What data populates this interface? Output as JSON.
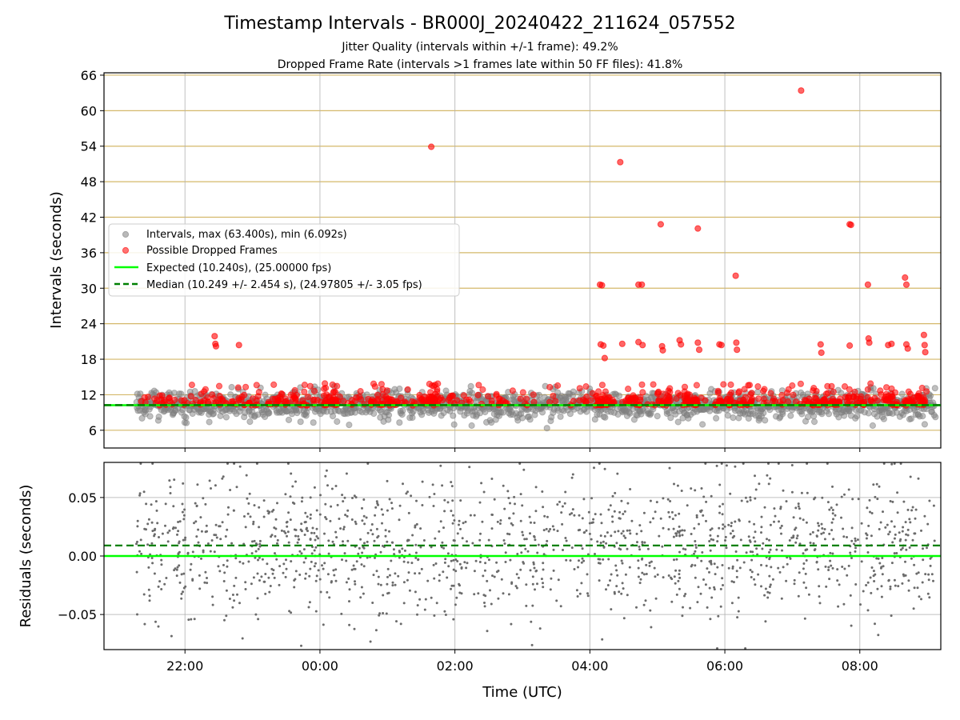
{
  "chart_data": [
    {
      "panel": "intervals",
      "type": "scatter",
      "title": "Timestamp Intervals - BR000J_20240422_211624_057552",
      "subtitle_lines": [
        "Jitter Quality (intervals within +/-1 frame): 49.2%",
        "Dropped Frame Rate (intervals >1 frames late within 50 FF files): 41.8%"
      ],
      "xlabel": "",
      "ylabel": "Intervals (seconds)",
      "x_unit": "hours since 2024-04-22 00:00 UTC",
      "xlim": [
        20.8,
        33.2
      ],
      "ylim": [
        3,
        66.4
      ],
      "yticks": [
        6,
        12,
        18,
        24,
        30,
        36,
        42,
        48,
        54,
        60,
        66
      ],
      "ytick_labels": [
        "6",
        "12",
        "18",
        "24",
        "30",
        "36",
        "42",
        "48",
        "54",
        "60",
        "66"
      ],
      "grid": true,
      "legend_position": "center-left",
      "legend": [
        "Intervals, max (63.400s), min (6.092s)",
        "Possible Dropped Frames",
        "Expected (10.240s), (25.00000 fps)",
        "Median (10.249 +/- 2.454 s), (24.97805 +/- 3.05 fps)"
      ],
      "series": [
        {
          "name": "Intervals, max (63.400s), min (6.092s)",
          "color": "#808080",
          "band_center": 10.24,
          "band_halfwidth": 2.5,
          "x_range": [
            21.28,
            33.12
          ]
        },
        {
          "name": "Possible Dropped Frames",
          "color": "#ff0000",
          "outliers": [
            {
              "x": 22.44,
              "y": 21.9
            },
            {
              "x": 22.45,
              "y": 20.6
            },
            {
              "x": 22.46,
              "y": 20.2
            },
            {
              "x": 22.8,
              "y": 20.4
            },
            {
              "x": 25.65,
              "y": 53.9
            },
            {
              "x": 28.15,
              "y": 30.6
            },
            {
              "x": 28.18,
              "y": 30.5
            },
            {
              "x": 28.45,
              "y": 51.3
            },
            {
              "x": 28.72,
              "y": 30.6
            },
            {
              "x": 28.77,
              "y": 30.6
            },
            {
              "x": 29.05,
              "y": 40.8
            },
            {
              "x": 29.6,
              "y": 40.1
            },
            {
              "x": 30.16,
              "y": 32.1
            },
            {
              "x": 31.13,
              "y": 63.4
            },
            {
              "x": 31.85,
              "y": 40.8
            },
            {
              "x": 31.87,
              "y": 40.7
            },
            {
              "x": 32.12,
              "y": 30.6
            },
            {
              "x": 32.67,
              "y": 31.8
            },
            {
              "x": 32.69,
              "y": 30.6
            },
            {
              "x": 28.16,
              "y": 20.5
            },
            {
              "x": 28.2,
              "y": 20.3
            },
            {
              "x": 28.22,
              "y": 18.2
            },
            {
              "x": 28.48,
              "y": 20.6
            },
            {
              "x": 28.72,
              "y": 20.9
            },
            {
              "x": 28.78,
              "y": 20.4
            },
            {
              "x": 29.07,
              "y": 20.2
            },
            {
              "x": 29.08,
              "y": 19.5
            },
            {
              "x": 29.33,
              "y": 21.2
            },
            {
              "x": 29.35,
              "y": 20.5
            },
            {
              "x": 29.6,
              "y": 20.8
            },
            {
              "x": 29.62,
              "y": 19.6
            },
            {
              "x": 29.92,
              "y": 20.5
            },
            {
              "x": 29.95,
              "y": 20.4
            },
            {
              "x": 30.17,
              "y": 20.8
            },
            {
              "x": 30.18,
              "y": 19.6
            },
            {
              "x": 31.42,
              "y": 20.5
            },
            {
              "x": 31.43,
              "y": 19.1
            },
            {
              "x": 31.85,
              "y": 20.3
            },
            {
              "x": 32.13,
              "y": 21.5
            },
            {
              "x": 32.14,
              "y": 20.8
            },
            {
              "x": 32.42,
              "y": 20.4
            },
            {
              "x": 32.47,
              "y": 20.6
            },
            {
              "x": 32.69,
              "y": 20.5
            },
            {
              "x": 32.71,
              "y": 19.8
            },
            {
              "x": 32.95,
              "y": 22.1
            },
            {
              "x": 32.96,
              "y": 20.4
            },
            {
              "x": 32.97,
              "y": 19.2
            }
          ]
        },
        {
          "name": "Expected (10.240s), (25.00000 fps)",
          "color": "#00ff00",
          "y": 10.24
        },
        {
          "name": "Median (10.249 +/- 2.454 s), (24.97805 +/- 3.05 fps)",
          "color": "#008000",
          "y": 10.249
        }
      ]
    },
    {
      "panel": "residuals",
      "type": "scatter",
      "xlabel": "Time (UTC)",
      "ylabel": "Residuals (seconds)",
      "x_unit": "hours since 2024-04-22 00:00 UTC",
      "xlim": [
        20.8,
        33.2
      ],
      "ylim": [
        -0.08,
        0.08
      ],
      "yticks": [
        -0.05,
        0.0,
        0.05
      ],
      "ytick_labels": [
        "−0.05",
        "0.00",
        "0.05"
      ],
      "xticks": [
        22,
        24,
        26,
        28,
        30,
        32
      ],
      "xtick_labels": [
        "22:00",
        "00:00",
        "02:00",
        "04:00",
        "06:00",
        "08:00"
      ],
      "grid": true,
      "series": [
        {
          "name": "Residuals",
          "color": "#6b6b6b",
          "x_range": [
            21.28,
            33.12
          ],
          "spread": 0.03
        },
        {
          "name": "Expected",
          "color": "#00ff00",
          "y": 0.0
        },
        {
          "name": "Median",
          "color": "#008000",
          "y": 0.009
        }
      ]
    }
  ]
}
